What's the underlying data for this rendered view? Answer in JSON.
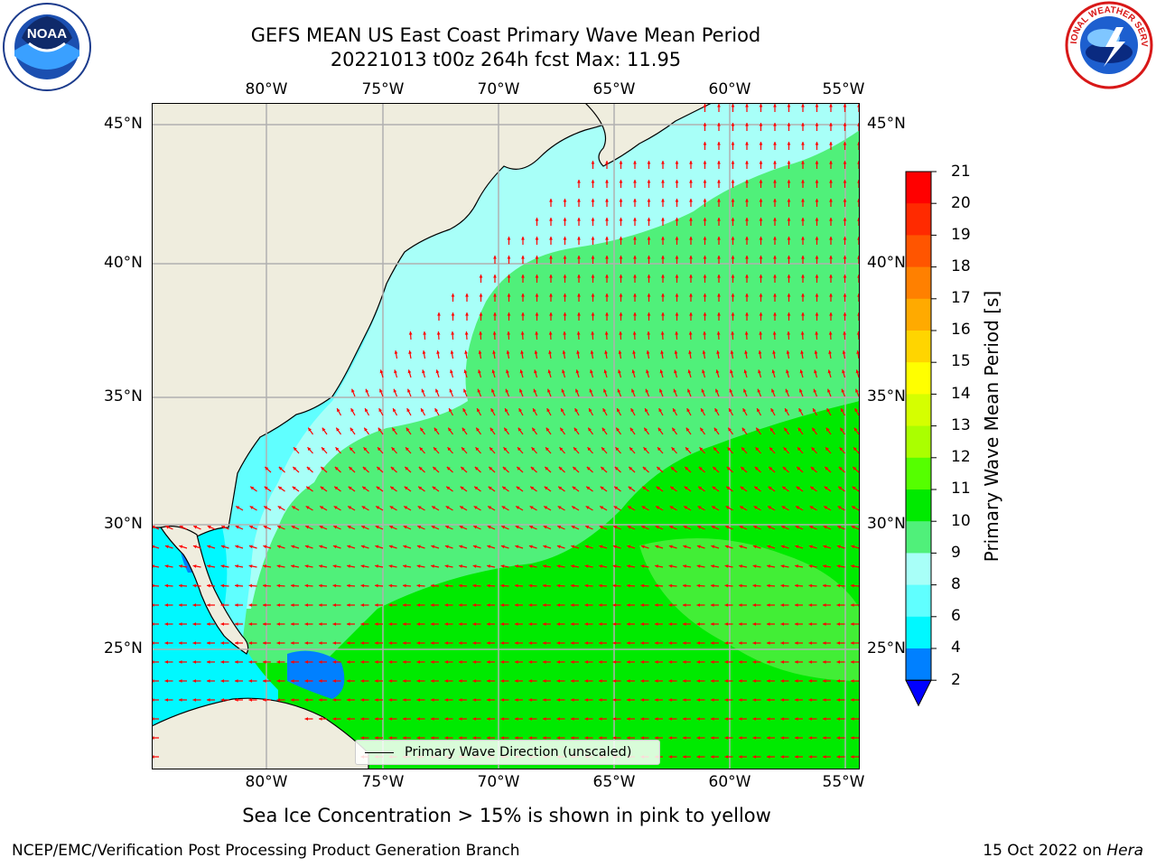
{
  "header": {
    "title": "GEFS MEAN US East Coast Primary Wave Mean Period",
    "subtitle": "20221013 t00z 264h fcst   Max: 11.95"
  },
  "map": {
    "lon_labels": [
      "80°W",
      "75°W",
      "70°W",
      "65°W",
      "60°W",
      "55°W"
    ],
    "lat_labels": [
      "45°N",
      "40°N",
      "35°N",
      "30°N",
      "25°N"
    ],
    "legend_label": "Primary Wave Direction (unscaled)",
    "arrow_color": "#ff0000",
    "land_color": "#efedde"
  },
  "colorbar": {
    "label": "Primary Wave Mean Period [s]",
    "ticks": [
      "21",
      "20",
      "19",
      "18",
      "17",
      "16",
      "15",
      "14",
      "13",
      "12",
      "11",
      "10",
      "9",
      "8",
      "6",
      "4",
      "2"
    ],
    "colors": [
      "#ff0000",
      "#ff2a00",
      "#ff5500",
      "#ff8000",
      "#ffaa00",
      "#ffd500",
      "#ffff00",
      "#d5ff00",
      "#aaff00",
      "#55ff00",
      "#00ea00",
      "#50f07a",
      "#a8fff8",
      "#60ffff",
      "#00f8ff",
      "#0080ff"
    ],
    "extend_color": "#0000ff"
  },
  "note": "Sea Ice Concentration > 15% is shown in pink to yellow",
  "footer": {
    "org": "NCEP/EMC/Verification Post Processing Product Generation Branch",
    "date": "15 Oct 2022 on ",
    "host": "Hera"
  },
  "logos": {
    "noaa": "NOAA",
    "nws": "NATIONAL WEATHER SERVICE"
  }
}
